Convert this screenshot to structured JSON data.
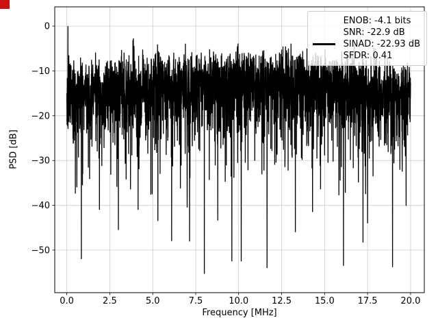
{
  "artifact": {
    "corner_marker_color": "#cc1111"
  },
  "chart_data": {
    "type": "line",
    "title": "",
    "xlabel": "Frequency [MHz]",
    "ylabel": "PSD [dB]",
    "xlim": [
      -0.7,
      20.8
    ],
    "ylim": [
      -59.5,
      4.3
    ],
    "xticks": [
      0.0,
      2.5,
      5.0,
      7.5,
      10.0,
      12.5,
      15.0,
      17.5,
      20.0
    ],
    "xtick_labels": [
      "0.0",
      "2.5",
      "5.0",
      "7.5",
      "10.0",
      "12.5",
      "15.0",
      "17.5",
      "20.0"
    ],
    "yticks": [
      0,
      -10,
      -20,
      -30,
      -40,
      -50
    ],
    "ytick_labels": [
      "0",
      "−10",
      "−20",
      "−30",
      "−40",
      "−50"
    ],
    "grid": true,
    "grid_color": "#cccccc",
    "axes_color": "#000000",
    "tick_label_color": "#000000",
    "line": {
      "color": "#000000",
      "width": 1.3
    },
    "legend": {
      "position": "upper right",
      "entries": [
        {
          "label": "ENOB: -4.1 bits",
          "handle": "none"
        },
        {
          "label": "SNR: -22.9 dB",
          "handle": "none"
        },
        {
          "label": "SINAD: -22.93 dB",
          "handle": "line"
        },
        {
          "label": "SFDR: 0.41",
          "handle": "none"
        }
      ]
    },
    "signal": {
      "description": "Dense noise-like PSD trace spanning the full band with a single full-scale spike at DC and occasional deep spectral nulls",
      "seed": 42,
      "n_points": 3000,
      "x_range": [
        0,
        20
      ],
      "noise_floor_db": -14,
      "envelope_hump_db": 2.5,
      "clamp_db": [
        -56.5,
        2.0
      ],
      "fundamental": {
        "x": 0.07,
        "y_db": 0.0
      },
      "deep_nulls": [
        [
          0.85,
          -52.0
        ],
        [
          1.9,
          -41.0
        ],
        [
          3.0,
          -45.5
        ],
        [
          4.15,
          -41.0
        ],
        [
          5.3,
          -43.5
        ],
        [
          6.1,
          -48.0
        ],
        [
          7.0,
          -40.5
        ],
        [
          8.0,
          -55.3
        ],
        [
          9.6,
          -52.5
        ],
        [
          10.15,
          -52.5
        ],
        [
          11.65,
          -54.0
        ],
        [
          13.3,
          -46.0
        ],
        [
          14.3,
          -41.5
        ],
        [
          16.1,
          -53.5
        ],
        [
          17.5,
          -44.0
        ],
        [
          18.95,
          -53.8
        ]
      ]
    }
  }
}
